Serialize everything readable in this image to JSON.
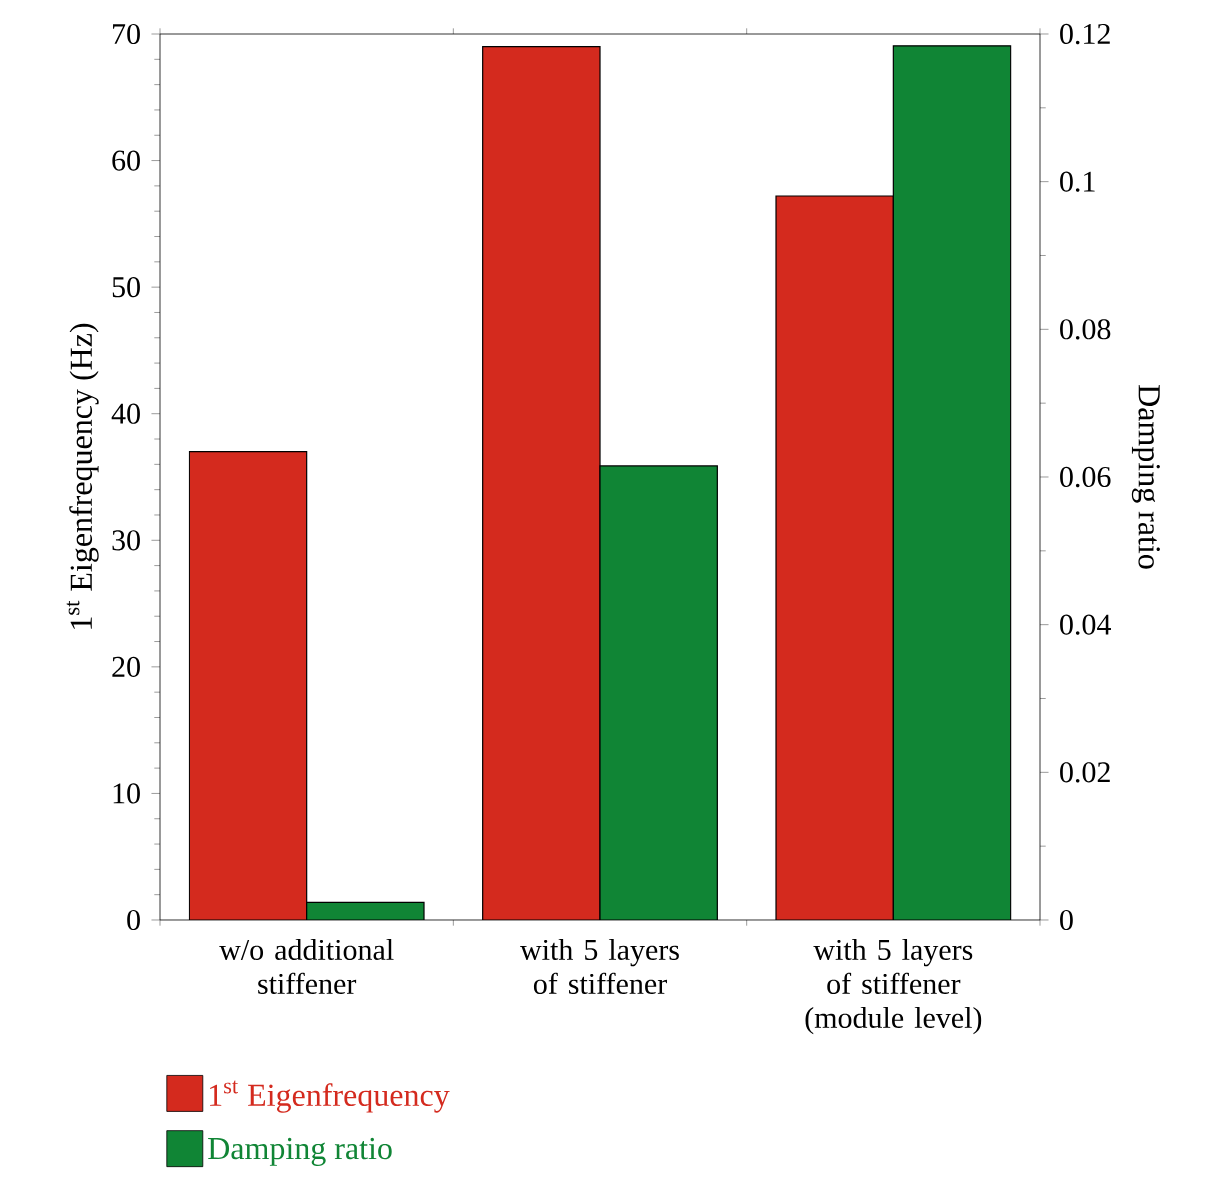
{
  "chart_data": {
    "type": "bar",
    "categories": [
      "w/o additional stiffener",
      "with 5 layers of stiffener",
      "with 5 layers of stiffener (module level)"
    ],
    "series": [
      {
        "name": "1$^{st}$ Eigenfrequency",
        "color": "#d42a1e",
        "values": [
          37.0,
          69.0,
          57.2
        ]
      },
      {
        "name": "Damping ratio",
        "color": "#108535",
        "axis": "y2",
        "values": [
          0.0024,
          0.0615,
          0.1184
        ]
      }
    ],
    "ylabel": "1$^{st}$ Eigenfrequency (Hz)",
    "y2label": "Damping ratio",
    "ylim": [
      0,
      70
    ],
    "yticks": [
      0,
      10,
      20,
      30,
      40,
      50,
      60,
      70
    ],
    "y2lim": [
      0,
      0.12
    ],
    "y2ticks": [
      0,
      0.02,
      0.04,
      0.06,
      0.08,
      0.1,
      0.12
    ],
    "legend": "bottom"
  }
}
